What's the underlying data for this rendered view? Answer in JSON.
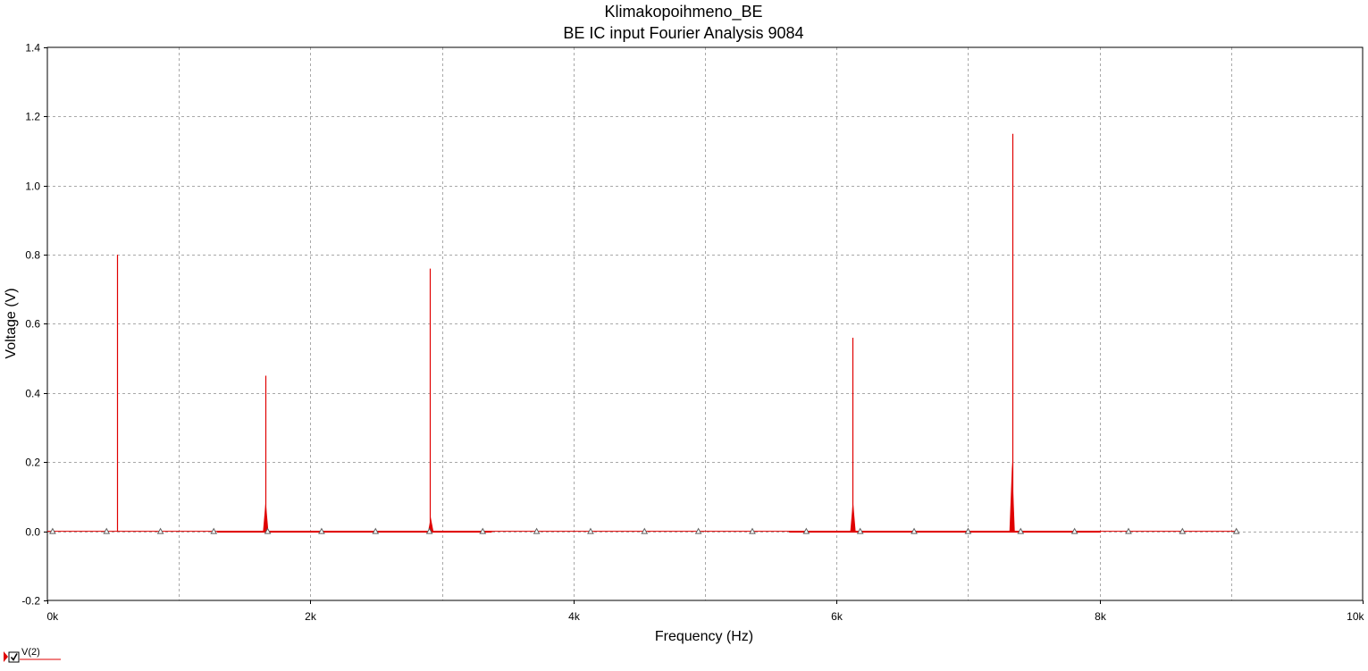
{
  "chart_data": {
    "type": "line",
    "title": "Klimakopoihmeno_BE",
    "subtitle": "BE IC input Fourier Analysis 9084",
    "xlabel": "Frequency (Hz)",
    "ylabel": "Voltage (V)",
    "xlim": [
      0,
      10000
    ],
    "ylim": [
      -0.2,
      1.4
    ],
    "x_ticks": [
      0,
      2000,
      4000,
      6000,
      8000,
      10000
    ],
    "x_tick_labels": [
      "0k",
      "2k",
      "4k",
      "6k",
      "8k",
      "10k"
    ],
    "y_ticks": [
      -0.2,
      0.0,
      0.2,
      0.4,
      0.6,
      0.8,
      1.0,
      1.2,
      1.4
    ],
    "y_tick_labels": [
      "-0.2",
      "0.0",
      "0.2",
      "0.4",
      "0.6",
      "0.8",
      "1.0",
      "1.2",
      "1.4"
    ],
    "grid": true,
    "legend": "bottom-left",
    "series": [
      {
        "name": "V(2)",
        "color": "#e00000",
        "peaks": [
          {
            "x": 530,
            "y": 0.8
          },
          {
            "x": 1655,
            "y": 0.45
          },
          {
            "x": 2910,
            "y": 0.76
          },
          {
            "x": 6120,
            "y": 0.56
          },
          {
            "x": 7340,
            "y": 1.15
          }
        ],
        "secondary_peaks": [
          {
            "x": 1660,
            "y": 0.09
          },
          {
            "x": 2915,
            "y": 0.04
          },
          {
            "x": 6125,
            "y": 0.09
          },
          {
            "x": 7335,
            "y": 0.2
          }
        ]
      }
    ],
    "markers": {
      "shape": "triangle",
      "color": "#606060",
      "x": [
        40,
        450,
        860,
        1265,
        1675,
        2085,
        2495,
        2905,
        3310,
        3720,
        4130,
        4540,
        4950,
        5360,
        5770,
        6180,
        6590,
        7000,
        7400,
        7810,
        8220,
        8630,
        9040
      ],
      "y": 0.0
    }
  }
}
